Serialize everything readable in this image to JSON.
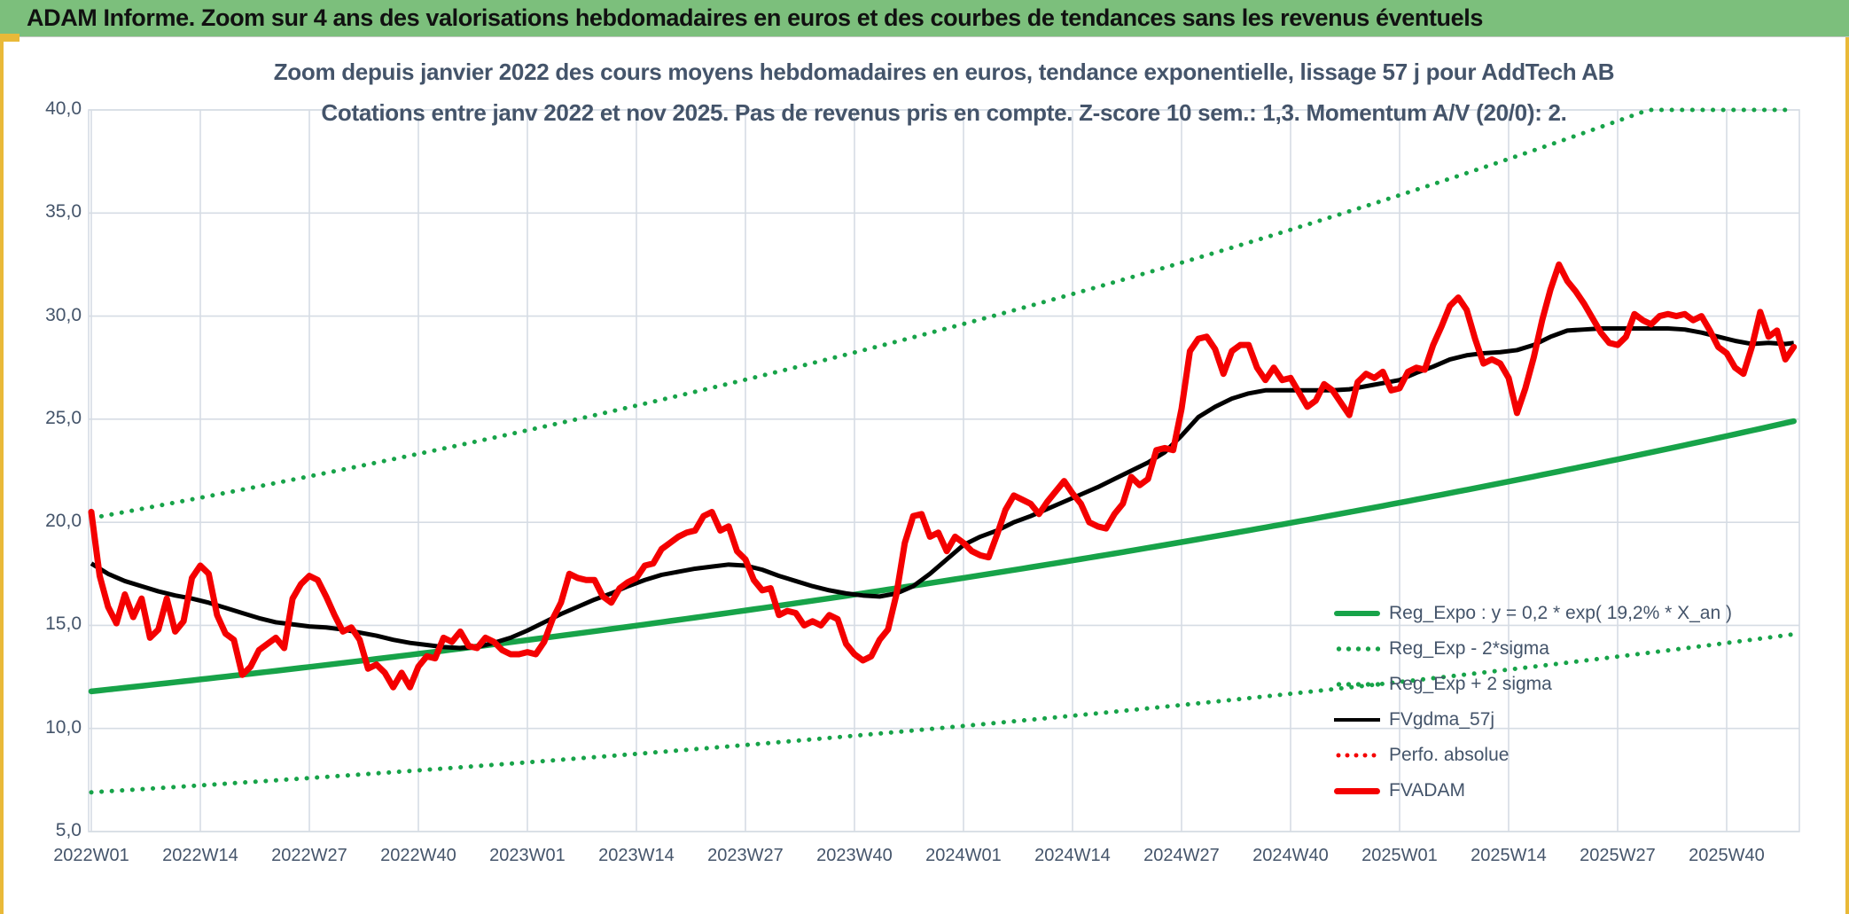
{
  "header": {
    "title": "ADAM Informe. Zoom sur 4 ans des valorisations hebdomadaires en euros et des courbes de tendances sans les revenus éventuels",
    "bg_color": "#7CBF7C",
    "accent_color": "#E9B938"
  },
  "chart": {
    "title_line1": "Zoom depuis janvier 2022 des cours moyens hebdomadaires en euros, tendance exponentielle, lissage 57 j pour AddTech AB",
    "title_line2": "Cotations entre janv 2022 et nov 2025. Pas de revenus pris en compte. Z-score 10 sem.: 1,3. Momentum A/V (20/0): 2.",
    "title_color": "#44546A",
    "grid_color": "#D6DCE4"
  },
  "legend": {
    "items": [
      {
        "label": "Reg_Expo : y = 0,2 * exp( 19,2% *  X_an )",
        "sample": "solid-green"
      },
      {
        "label": "Reg_Exp - 2*sigma",
        "sample": "dot-green"
      },
      {
        "label": "Reg_Exp + 2 sigma",
        "sample": "dot-green"
      },
      {
        "label": "FVgdma_57j",
        "sample": "solid-black"
      },
      {
        "label": "Perfo. absolue",
        "sample": "dot-red"
      },
      {
        "label": "FVADAM",
        "sample": "solid-red"
      }
    ]
  },
  "chart_data": {
    "type": "line",
    "x_axis": {
      "tick_labels": [
        "2022W01",
        "2022W14",
        "2022W27",
        "2022W40",
        "2023W01",
        "2023W14",
        "2023W27",
        "2023W40",
        "2024W01",
        "2024W14",
        "2024W27",
        "2024W40",
        "2025W01",
        "2025W14",
        "2025W27",
        "2025W40"
      ],
      "tick_weeks": [
        0,
        13,
        26,
        39,
        52,
        65,
        78,
        91,
        104,
        117,
        130,
        143,
        156,
        169,
        182,
        195
      ],
      "total_weeks": 204
    },
    "y_axis": {
      "min": 5,
      "max": 40,
      "step": 5,
      "tick_labels": [
        "5,0",
        "10,0",
        "15,0",
        "20,0",
        "25,0",
        "30,0",
        "35,0",
        "40,0"
      ],
      "grid": true
    },
    "regression": {
      "name": "Reg_Expo",
      "formula": "y = 0,2 * exp( 19,2% *  X_an )",
      "start_value": 11.8,
      "annual_rate": 0.192,
      "weeks_per_year": 52.18,
      "color": "#17A349",
      "band_up_factor": 1.712,
      "band_down_factor": 0.585,
      "band_clip_max": 40,
      "band_up_name": "Reg_Exp + 2 sigma",
      "band_down_name": "Reg_Exp - 2*sigma"
    },
    "series": [
      {
        "name": "FVADAM",
        "color": "#F40000",
        "style": "solid",
        "week_step": 1,
        "values": [
          20.5,
          17.4,
          15.9,
          15.1,
          16.5,
          15.4,
          16.3,
          14.4,
          14.8,
          16.3,
          14.7,
          15.2,
          17.3,
          17.9,
          17.5,
          15.5,
          14.6,
          14.3,
          12.6,
          13.0,
          13.8,
          14.1,
          14.4,
          13.9,
          16.3,
          17.0,
          17.4,
          17.2,
          16.4,
          15.5,
          14.7,
          14.9,
          14.3,
          12.9,
          13.1,
          12.7,
          12.0,
          12.7,
          12.0,
          13.0,
          13.5,
          13.4,
          14.4,
          14.2,
          14.7,
          14.0,
          13.9,
          14.4,
          14.2,
          13.8,
          13.6,
          13.6,
          13.7,
          13.6,
          14.2,
          15.3,
          16.1,
          17.5,
          17.3,
          17.2,
          17.2,
          16.4,
          16.1,
          16.8,
          17.1,
          17.3,
          17.9,
          18.0,
          18.7,
          19.0,
          19.3,
          19.5,
          19.6,
          20.3,
          20.5,
          19.6,
          19.8,
          18.6,
          18.2,
          17.2,
          16.7,
          16.8,
          15.5,
          15.7,
          15.6,
          15.0,
          15.2,
          15.0,
          15.5,
          15.3,
          14.1,
          13.6,
          13.3,
          13.5,
          14.3,
          14.8,
          16.5,
          19.0,
          20.3,
          20.4,
          19.3,
          19.5,
          18.6,
          19.3,
          19.0,
          18.6,
          18.4,
          18.3,
          19.4,
          20.6,
          21.3,
          21.1,
          20.9,
          20.4,
          21.0,
          21.5,
          22.0,
          21.4,
          20.9,
          20.0,
          19.8,
          19.7,
          20.4,
          20.9,
          22.2,
          21.8,
          22.1,
          23.5,
          23.6,
          23.5,
          25.5,
          28.3,
          28.9,
          29.0,
          28.4,
          27.2,
          28.3,
          28.6,
          28.6,
          27.5,
          26.9,
          27.5,
          26.9,
          27.0,
          26.3,
          25.6,
          25.9,
          26.7,
          26.4,
          25.8,
          25.2,
          26.8,
          27.2,
          27.0,
          27.3,
          26.4,
          26.5,
          27.3,
          27.5,
          27.4,
          28.6,
          29.5,
          30.5,
          30.9,
          30.3,
          28.9,
          27.7,
          27.9,
          27.7,
          27.0,
          25.3,
          26.5,
          28.0,
          29.8,
          31.3,
          32.5,
          31.7,
          31.2,
          30.6,
          29.9,
          29.2,
          28.7,
          28.6,
          29.0,
          30.1,
          29.8,
          29.6,
          30.0,
          30.1,
          30.0,
          30.1,
          29.8,
          30.0,
          29.3,
          28.5,
          28.2,
          27.5,
          27.2,
          28.5,
          30.2,
          29.0,
          29.3,
          27.9,
          28.5
        ]
      },
      {
        "name": "Perfo. absolue",
        "color": "#F40000",
        "style": "dotted",
        "week_step": 1,
        "same_as": "FVADAM",
        "values": []
      },
      {
        "name": "FVgdma_57j",
        "color": "#000000",
        "style": "solid",
        "week_step": 2,
        "values": [
          18.0,
          17.5,
          17.15,
          16.9,
          16.65,
          16.45,
          16.3,
          16.1,
          15.85,
          15.6,
          15.35,
          15.15,
          15.05,
          14.95,
          14.9,
          14.8,
          14.65,
          14.5,
          14.3,
          14.15,
          14.05,
          13.95,
          13.9,
          13.95,
          14.15,
          14.4,
          14.75,
          15.15,
          15.55,
          15.9,
          16.25,
          16.55,
          16.9,
          17.2,
          17.45,
          17.6,
          17.75,
          17.85,
          17.95,
          17.9,
          17.7,
          17.4,
          17.15,
          16.9,
          16.7,
          16.55,
          16.45,
          16.4,
          16.55,
          16.9,
          17.5,
          18.2,
          18.9,
          19.3,
          19.6,
          20.0,
          20.3,
          20.65,
          21.0,
          21.35,
          21.7,
          22.1,
          22.5,
          22.9,
          23.4,
          24.2,
          25.1,
          25.6,
          26.0,
          26.25,
          26.4,
          26.4,
          26.4,
          26.4,
          26.4,
          26.45,
          26.6,
          26.75,
          26.9,
          27.25,
          27.55,
          27.9,
          28.1,
          28.2,
          28.25,
          28.35,
          28.6,
          29.0,
          29.3,
          29.35,
          29.4,
          29.4,
          29.4,
          29.4,
          29.4,
          29.35,
          29.2,
          29.0,
          28.8,
          28.65,
          28.7,
          28.65
        ],
        "final_point": {
          "week": 203,
          "value": 28.7
        }
      }
    ]
  }
}
